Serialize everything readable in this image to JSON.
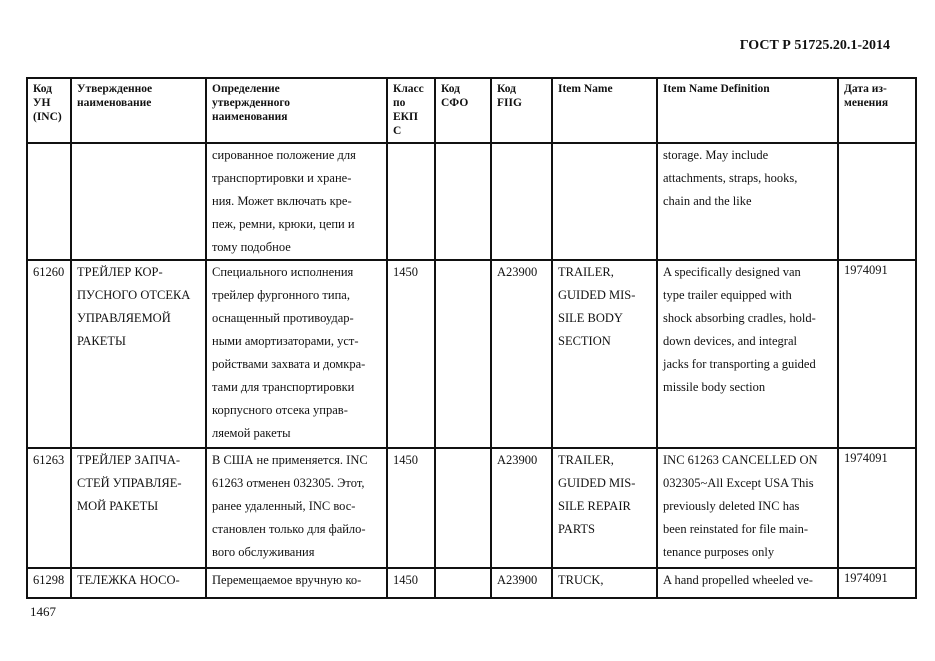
{
  "document": {
    "title": "ГОСТ Р 51725.20.1-2014",
    "page_number": "1467"
  },
  "table": {
    "headers": [
      [
        "Код",
        "УН",
        "(INC)"
      ],
      [
        "Утвержденное",
        "наименование"
      ],
      [
        "Определение",
        "утвержденного",
        "наименования"
      ],
      [
        "Класс",
        "по",
        "ЕКП",
        "С"
      ],
      [
        "Код",
        "СФО"
      ],
      [
        "Код",
        "FIIG"
      ],
      [
        "Item Name"
      ],
      [
        "Item Name Definition"
      ],
      [
        "Дата из-",
        "менения"
      ]
    ],
    "rows": [
      [
        [],
        [],
        [
          "сированное положение для",
          "транспортировки и хране-",
          "ния. Может включать кре-",
          "пеж, ремни, крюки, цепи и",
          "тому подобное"
        ],
        [],
        [],
        [],
        [],
        [
          "storage. May include",
          "attachments, straps, hooks,",
          "chain and the like"
        ],
        []
      ],
      [
        [
          "61260"
        ],
        [
          "ТРЕЙЛЕР КОР-",
          "ПУСНОГО ОТСЕКА",
          "УПРАВЛЯЕМОЙ",
          "РАКЕТЫ"
        ],
        [
          "Специального исполнения",
          "трейлер фургонного типа,",
          "оснащенный противоудар-",
          "ными амортизаторами, уст-",
          "ройствами захвата и домкра-",
          "тами для транспортировки",
          "корпусного отсека управ-",
          "ляемой ракеты"
        ],
        [
          "1450"
        ],
        [],
        [
          "A23900"
        ],
        [
          "TRAILER,",
          "GUIDED MIS-",
          "SILE BODY",
          "SECTION"
        ],
        [
          "A specifically designed van",
          "type trailer equipped with",
          "shock absorbing cradles, hold-",
          "down devices, and integral",
          "jacks for transporting a guided",
          "missile body section"
        ],
        [
          "1974091"
        ]
      ],
      [
        [
          "61263"
        ],
        [
          "ТРЕЙЛЕР ЗАПЧА-",
          "СТЕЙ УПРАВЛЯЕ-",
          "МОЙ РАКЕТЫ"
        ],
        [
          "В США не применяется. INC",
          "61263 отменен  032305. Этот,",
          "ранее удаленный, INC вос-",
          "становлен только для файло-",
          "вого обслуживания"
        ],
        [
          "1450"
        ],
        [],
        [
          "A23900"
        ],
        [
          "TRAILER,",
          "GUIDED MIS-",
          "SILE REPAIR",
          "PARTS"
        ],
        [
          "INC 61263 CANCELLED ON",
          "032305~All Except USA This",
          "previously deleted INC has",
          "been reinstated for file main-",
          "tenance purposes only"
        ],
        [
          "1974091"
        ]
      ],
      [
        [
          "61298"
        ],
        [
          "ТЕЛЕЖКА НОСО-"
        ],
        [
          "Перемещаемое вручную ко-"
        ],
        [
          "1450"
        ],
        [],
        [
          "A23900"
        ],
        [
          "TRUCK,"
        ],
        [
          "A hand propelled wheeled ve-"
        ],
        [
          "1974091"
        ]
      ]
    ]
  }
}
